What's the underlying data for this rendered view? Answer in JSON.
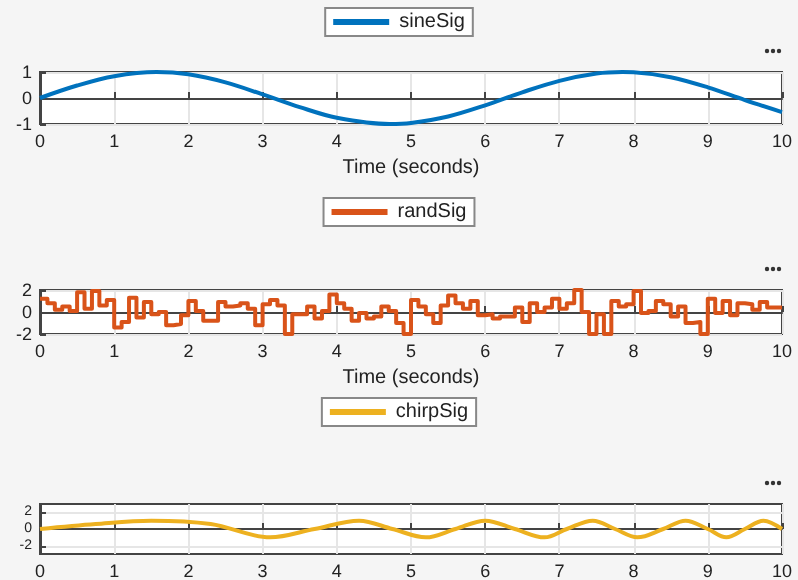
{
  "chart_data": [
    {
      "type": "line",
      "xlabel": "Time (seconds)",
      "xlim": [
        0,
        10
      ],
      "xticks": [
        0,
        1,
        2,
        3,
        4,
        5,
        6,
        7,
        8,
        9,
        10
      ],
      "ylim": [
        -1,
        1
      ],
      "yticks": [
        -1,
        0,
        1
      ],
      "grid": true,
      "legend": "top",
      "marker": "none",
      "line_style": "solid",
      "series": [
        {
          "name": "sineSig",
          "color": "#0072bd",
          "x": [
            0,
            0.5,
            1,
            1.57,
            2,
            2.5,
            3,
            3.5,
            4,
            4.71,
            5,
            5.5,
            6,
            6.5,
            7,
            7.5,
            7.85,
            8,
            8.5,
            9,
            9.5,
            10
          ],
          "values": [
            0,
            0.48,
            0.84,
            1,
            0.91,
            0.6,
            0.14,
            -0.35,
            -0.76,
            -1,
            -0.96,
            -0.71,
            -0.28,
            0.22,
            0.66,
            0.94,
            1,
            0.99,
            0.8,
            0.41,
            -0.08,
            -0.54
          ]
        }
      ]
    },
    {
      "type": "step",
      "xlabel": "Time (seconds)",
      "xlim": [
        0,
        10
      ],
      "xticks": [
        0,
        1,
        2,
        3,
        4,
        5,
        6,
        7,
        8,
        9,
        10
      ],
      "ylim": [
        -2,
        2
      ],
      "yticks": [
        -2,
        0,
        2
      ],
      "grid": true,
      "legend": "top",
      "marker": "none",
      "line_style": "solid",
      "series": [
        {
          "name": "randSig",
          "color": "#d95319",
          "x": [
            0,
            0.1,
            0.2,
            0.3,
            0.4,
            0.5,
            0.6,
            0.7,
            0.8,
            0.9,
            1,
            1.1,
            1.2,
            1.3,
            1.4,
            1.5,
            1.6,
            1.7,
            1.8,
            1.9,
            2,
            2.1,
            2.2,
            2.3,
            2.4,
            2.5,
            2.6,
            2.7,
            2.8,
            2.9,
            3,
            3.1,
            3.2,
            3.3,
            3.4,
            3.5,
            3.6,
            3.7,
            3.8,
            3.9,
            4,
            4.1,
            4.2,
            4.3,
            4.4,
            4.5,
            4.6,
            4.7,
            4.8,
            4.9,
            5,
            5.1,
            5.2,
            5.3,
            5.4,
            5.5,
            5.6,
            5.7,
            5.8,
            5.9,
            6,
            6.1,
            6.2,
            6.3,
            6.4,
            6.5,
            6.6,
            6.7,
            6.8,
            6.9,
            7,
            7.1,
            7.2,
            7.3,
            7.4,
            7.5,
            7.6,
            7.7,
            7.8,
            7.9,
            8,
            8.1,
            8.2,
            8.3,
            8.4,
            8.5,
            8.6,
            8.7,
            8.8,
            8.9,
            9,
            9.1,
            9.2,
            9.3,
            9.4,
            9.5,
            9.6,
            9.7,
            9.8,
            9.9,
            10
          ],
          "values": [
            1.2,
            0.8,
            0.2,
            0.5,
            0.1,
            1.8,
            0.3,
            1.9,
            0.6,
            1.1,
            -1.4,
            -0.9,
            1.3,
            -0.5,
            0.9,
            -0.2,
            0,
            -1.2,
            -1.1,
            -0.3,
            1,
            0.1,
            -0.8,
            -0.8,
            0.9,
            0.5,
            0.6,
            0.8,
            0.3,
            -1.2,
            0.7,
            1.1,
            0.6,
            -2,
            -0.2,
            -0.2,
            0.5,
            -0.6,
            0.1,
            1.6,
            0.8,
            0.3,
            -0.8,
            -0.1,
            -0.6,
            -0.4,
            0.5,
            0.1,
            -1,
            -2,
            1.1,
            0.5,
            -0.2,
            -1,
            0.6,
            1.5,
            0.8,
            0.3,
            1,
            -0.3,
            -0.2,
            -0.6,
            -0.4,
            -0.4,
            0.4,
            -0.9,
            0.8,
            0,
            0.4,
            1.2,
            0.3,
            0.8,
            2,
            0,
            -2,
            -0.2,
            -2,
            1,
            0.5,
            0.7,
            1.9,
            -0.1,
            0.1,
            1,
            0.7,
            -0.4,
            0.5,
            -1,
            -0.9,
            -2,
            1.2,
            -0.1,
            1,
            -0.3,
            0.8,
            0.7,
            0.2,
            0.9,
            0.4,
            0.4,
            0.4
          ]
        }
      ]
    },
    {
      "type": "line",
      "xlim": [
        0,
        10
      ],
      "xticks": [
        0,
        1,
        2,
        3,
        4,
        5,
        6,
        7,
        8,
        9,
        10
      ],
      "ylim": [
        -3,
        3
      ],
      "yticks": [
        -2,
        0,
        2
      ],
      "grid": true,
      "legend": "top",
      "marker": "none",
      "line_style": "solid",
      "series": [
        {
          "name": "chirpSig",
          "color": "#edb120",
          "x": [
            0,
            0.75,
            1.5,
            2.3,
            3.1,
            3.7,
            4.3,
            4.75,
            5.2,
            5.6,
            6,
            6.4,
            6.8,
            7.1,
            7.45,
            7.75,
            8.05,
            8.4,
            8.7,
            9,
            9.25,
            9.5,
            9.75,
            10
          ],
          "values": [
            0,
            0.6,
            1,
            0.6,
            -1,
            0,
            1,
            0,
            -1,
            0,
            1,
            0,
            -1,
            0,
            1,
            0,
            -1,
            0,
            1,
            0,
            -1,
            0,
            1,
            0
          ]
        }
      ]
    }
  ]
}
